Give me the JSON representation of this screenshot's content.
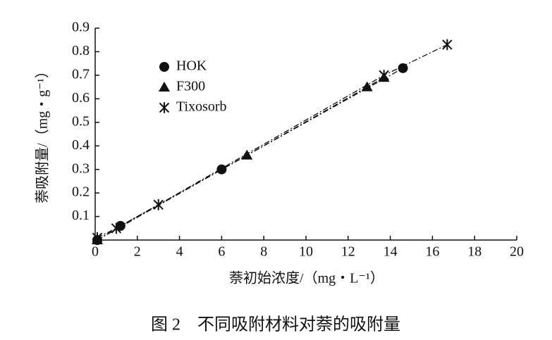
{
  "chart_data": {
    "type": "scatter",
    "caption": "图 2　不同吸附材料对萘的吸附量",
    "xlabel": "萘初始浓度/（mg・L⁻¹）",
    "ylabel": "萘吸附量/（mg・g⁻¹）",
    "xlim": [
      0,
      20
    ],
    "xticks": [
      0,
      2,
      4,
      6,
      8,
      10,
      12,
      14,
      16,
      18,
      20
    ],
    "ylim": [
      0,
      0.9
    ],
    "yticks": [
      0.1,
      0.2,
      0.3,
      0.4,
      0.5,
      0.6,
      0.7,
      0.8,
      0.9
    ],
    "series": [
      {
        "name": "HOK",
        "marker": "circle",
        "color": "#111111",
        "x": [
          0.1,
          1.2,
          6.0,
          14.6
        ],
        "values": [
          0.0,
          0.06,
          0.3,
          0.73
        ]
      },
      {
        "name": "F300",
        "marker": "triangle",
        "color": "#111111",
        "x": [
          0.1,
          7.2,
          12.9,
          13.7
        ],
        "values": [
          0.0,
          0.36,
          0.65,
          0.69
        ]
      },
      {
        "name": "Tixosorb",
        "marker": "star",
        "color": "#111111",
        "x": [
          0.1,
          1.0,
          3.0,
          13.7,
          16.7
        ],
        "values": [
          0.01,
          0.05,
          0.15,
          0.7,
          0.83
        ]
      }
    ]
  }
}
